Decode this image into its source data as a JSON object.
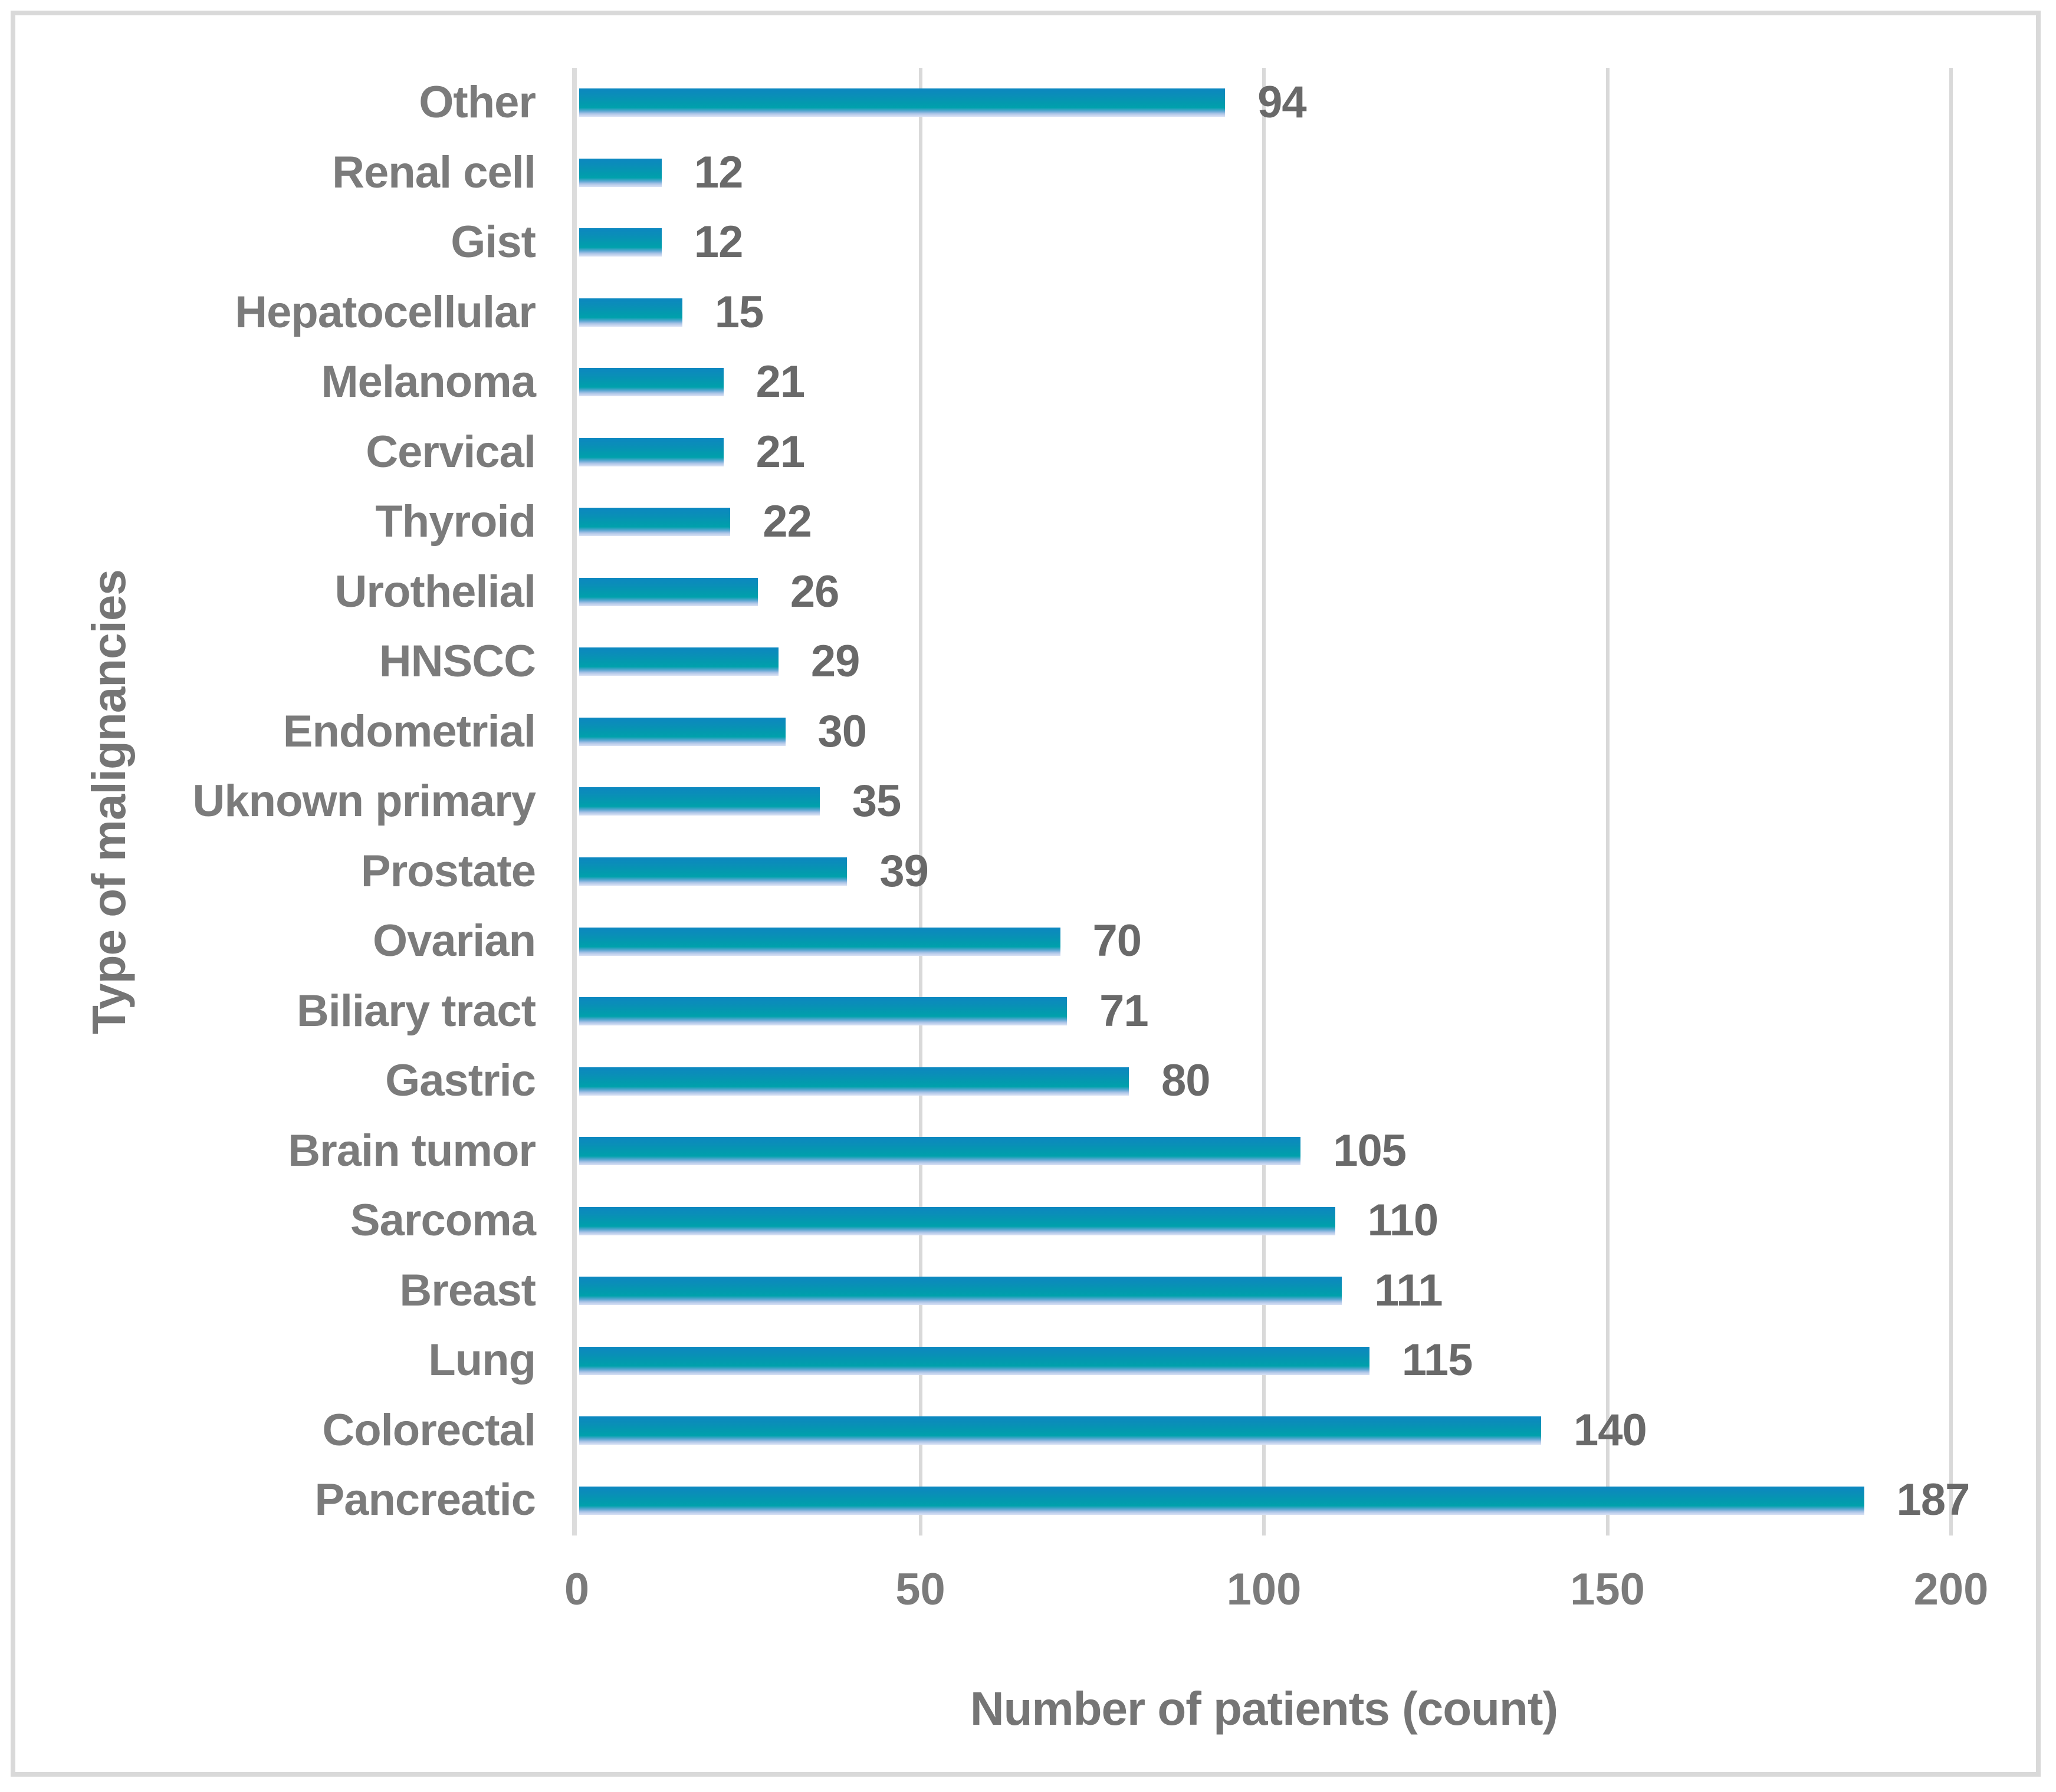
{
  "chart_data": {
    "type": "bar",
    "orientation": "horizontal",
    "title": "",
    "xlabel": "Number of patients (count)",
    "ylabel": "Type of malignancies",
    "xlim": [
      0,
      200
    ],
    "xticks": [
      "0",
      "50",
      "100",
      "150",
      "200"
    ],
    "xtick_values": [
      0,
      50,
      100,
      150,
      200
    ],
    "grid": "vertical-gridlines-on",
    "legend": "none",
    "data_labels": "outside-end",
    "categories_top_to_bottom": [
      "Other",
      "Renal cell",
      "Gist",
      "Hepatocellular",
      "Melanoma",
      "Cervical",
      "Thyroid",
      "Urothelial",
      "HNSCC",
      "Endometrial",
      "Uknown primary",
      "Prostate",
      "Ovarian",
      "Biliary tract",
      "Gastric",
      "Brain tumor",
      "Sarcoma",
      "Breast",
      "Lung",
      "Colorectal",
      "Pancreatic"
    ],
    "series": [
      {
        "name": "Number of patients",
        "points": [
          {
            "label": "Other",
            "value": 94
          },
          {
            "label": "Renal cell",
            "value": 12
          },
          {
            "label": "Gist",
            "value": 12
          },
          {
            "label": "Hepatocellular",
            "value": 15
          },
          {
            "label": "Melanoma",
            "value": 21
          },
          {
            "label": "Cervical",
            "value": 21
          },
          {
            "label": "Thyroid",
            "value": 22
          },
          {
            "label": "Urothelial",
            "value": 26
          },
          {
            "label": "HNSCC",
            "value": 29
          },
          {
            "label": "Endometrial",
            "value": 30
          },
          {
            "label": "Uknown primary",
            "value": 35
          },
          {
            "label": "Prostate",
            "value": 39
          },
          {
            "label": "Ovarian",
            "value": 70
          },
          {
            "label": "Biliary tract",
            "value": 71
          },
          {
            "label": "Gastric",
            "value": 80
          },
          {
            "label": "Brain tumor",
            "value": 105
          },
          {
            "label": "Sarcoma",
            "value": 110
          },
          {
            "label": "Breast",
            "value": 111
          },
          {
            "label": "Lung",
            "value": 115
          },
          {
            "label": "Colorectal",
            "value": 140
          },
          {
            "label": "Pancreatic",
            "value": 187
          }
        ]
      }
    ]
  },
  "colors": {
    "bar_gradient_top": "#0c87c0",
    "bar_gradient_mid": "#00a1ac",
    "bar_gradient_bottom": "#d6e0f4",
    "category_text": "#7b7b7b",
    "value_text": "#696969",
    "axis_title_text": "#757575",
    "gridline": "#d9d9d9",
    "axis_line": "#dcdcdc",
    "frame_border": "#d9d9d9",
    "background": "#ffffff"
  }
}
